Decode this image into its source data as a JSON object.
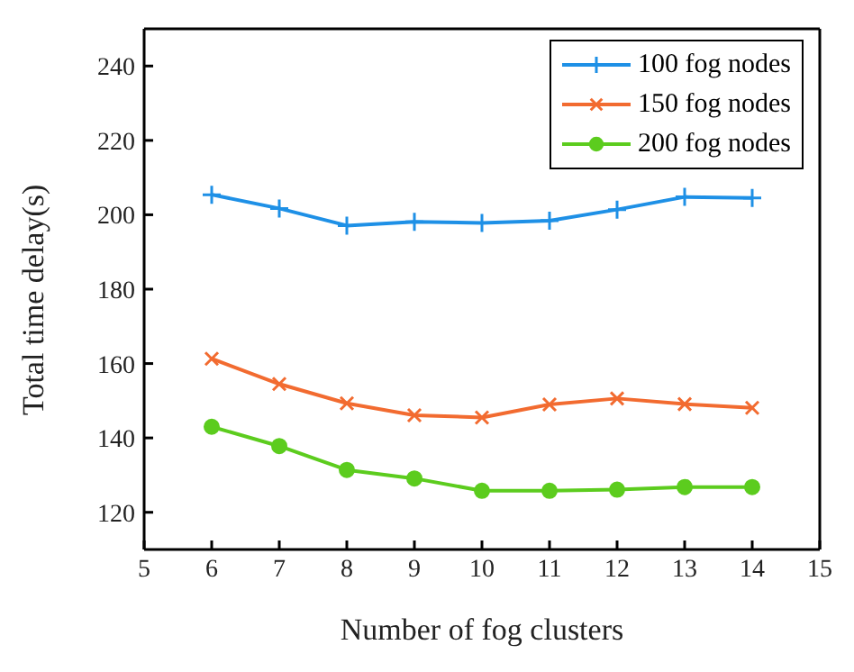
{
  "chart_data": {
    "type": "line",
    "xlabel": "Number of fog clusters",
    "ylabel": "Total time delay(s)",
    "x": [
      6,
      7,
      8,
      9,
      10,
      11,
      12,
      13,
      14
    ],
    "xlim": [
      5,
      15
    ],
    "xticks": [
      5,
      6,
      7,
      8,
      9,
      10,
      11,
      12,
      13,
      14,
      15
    ],
    "ylim": [
      110,
      250
    ],
    "yticks": [
      120,
      140,
      160,
      180,
      200,
      220,
      240
    ],
    "grid": false,
    "legend": "top right",
    "line_style": "solid",
    "series": [
      {
        "name": "100 fog nodes",
        "color": "#1e90e6",
        "marker": "cross",
        "values": [
          205.4,
          201.7,
          197.1,
          198.1,
          197.8,
          198.4,
          201.4,
          204.8,
          204.5
        ]
      },
      {
        "name": "150 fog nodes",
        "color": "#f26b30",
        "marker": "x",
        "values": [
          161.3,
          154.5,
          149.3,
          146.1,
          145.5,
          149.0,
          150.6,
          149.1,
          148.1
        ]
      },
      {
        "name": "200 fog nodes",
        "color": "#5ccc1e",
        "marker": "circle",
        "values": [
          143.0,
          137.8,
          131.4,
          129.1,
          125.8,
          125.8,
          126.1,
          126.8,
          126.8
        ]
      }
    ]
  }
}
